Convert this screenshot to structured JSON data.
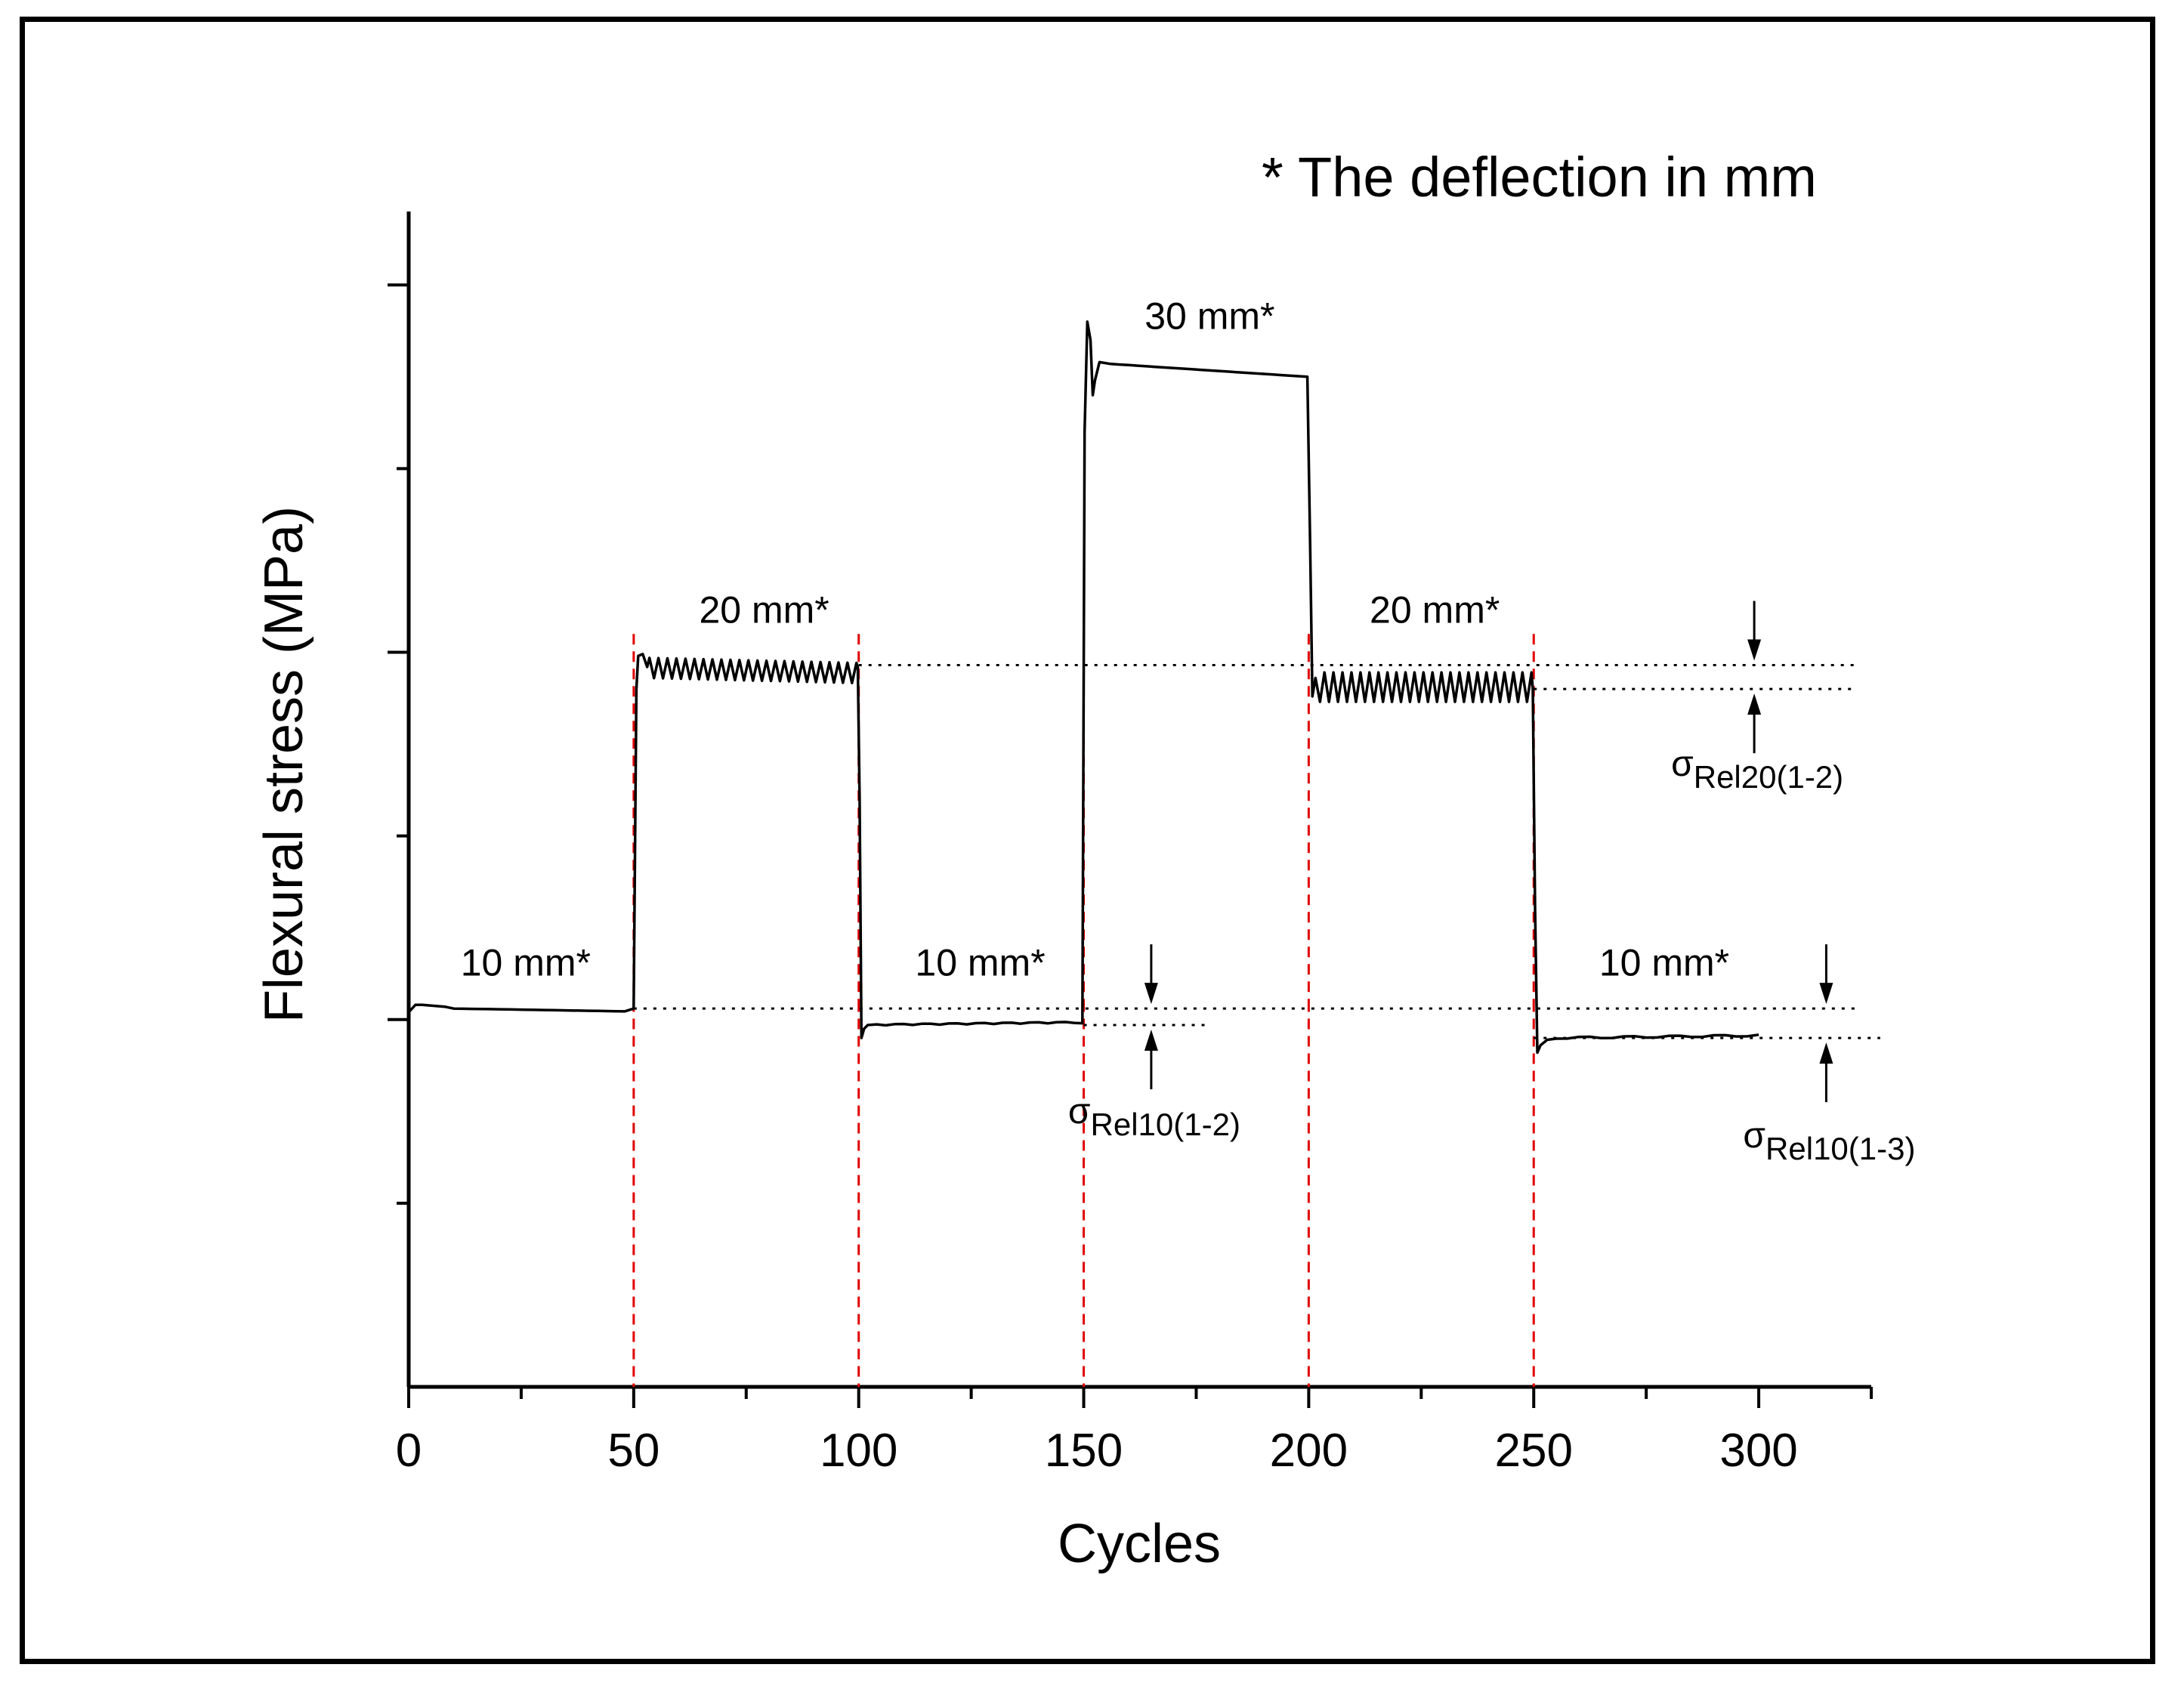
{
  "chart_data": {
    "type": "line",
    "title": "",
    "note": "* The deflection in mm",
    "xlabel": "Cycles",
    "ylabel": "Flexural stress (MPa)",
    "xlim": [
      0,
      325
    ],
    "ylim": [
      0,
      3.2
    ],
    "x_ticks": [
      0,
      50,
      100,
      150,
      200,
      250,
      300
    ],
    "x_tick_labels": [
      "0",
      "50",
      "100",
      "150",
      "200",
      "250",
      "300"
    ],
    "y_tick_labels_shown": false,
    "grid": false,
    "dividers": [
      50,
      100,
      150,
      200,
      250
    ],
    "segments": [
      {
        "label": "10 mm*",
        "deflection_mm": 10,
        "x_start": 0,
        "x_end": 50,
        "stress": 1.03
      },
      {
        "label": "20 mm*",
        "deflection_mm": 20,
        "x_start": 50,
        "x_end": 100,
        "stress": 1.96
      },
      {
        "label": "10 mm*",
        "deflection_mm": 10,
        "x_start": 100,
        "x_end": 150,
        "stress": 0.99
      },
      {
        "label": "30 mm*",
        "deflection_mm": 30,
        "x_start": 150,
        "x_end": 200,
        "stress": 2.76
      },
      {
        "label": "20 mm*",
        "deflection_mm": 20,
        "x_start": 200,
        "x_end": 250,
        "stress": 1.9
      },
      {
        "label": "10 mm*",
        "deflection_mm": 10,
        "x_start": 250,
        "x_end": 300,
        "stress": 0.96
      }
    ],
    "reference_lines": [
      {
        "name": "sigma_rel20",
        "y": 1.965,
        "x_start": 100,
        "x_end": 322
      },
      {
        "name": "sigma_rel20",
        "y": 1.9,
        "x_start": 250,
        "x_end": 322
      },
      {
        "name": "sigma_rel10",
        "y": 1.03,
        "x_start": 50,
        "x_end": 322
      },
      {
        "name": "sigma_rel10",
        "y": 0.985,
        "x_start": 150,
        "x_end": 178
      },
      {
        "name": "sigma_rel10",
        "y": 0.95,
        "x_start": 250,
        "x_end": 327
      }
    ],
    "annotations": [
      {
        "base": "σ",
        "sub": "Rel20(1-2)",
        "x": 299,
        "y_top": 1.965,
        "y_bottom": 1.9
      },
      {
        "base": "σ",
        "sub": "Rel10(1-2)",
        "x": 165,
        "y_top": 1.03,
        "y_bottom": 0.985
      },
      {
        "base": "σ",
        "sub": "Rel10(1-3)",
        "x": 315,
        "y_top": 1.03,
        "y_bottom": 0.95
      }
    ]
  }
}
